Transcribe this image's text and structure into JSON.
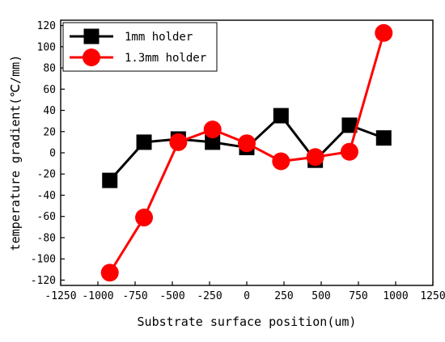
{
  "chart_data": {
    "type": "line",
    "title": "",
    "xlabel": "Substrate surface position(um)",
    "ylabel": "temperature gradient(℃/mm)",
    "xlim": [
      -1250,
      1250
    ],
    "ylim": [
      -125,
      125
    ],
    "xticks": [
      -1250,
      -1000,
      -750,
      -500,
      -250,
      0,
      250,
      500,
      750,
      1000,
      1250
    ],
    "yticks": [
      -120,
      -100,
      -80,
      -60,
      -40,
      -20,
      0,
      20,
      40,
      60,
      80,
      100,
      120
    ],
    "xtick_labels": [
      "-1250",
      "-1000",
      "-750",
      "-500",
      "-250",
      "0",
      "250",
      "500",
      "750",
      "1000",
      "1250"
    ],
    "ytick_labels": [
      "-120",
      "-100",
      "-80",
      "-60",
      "-40",
      "-20",
      "0",
      "20",
      "40",
      "60",
      "80",
      "100",
      "120"
    ],
    "legend_position": "top-left",
    "grid": false,
    "series": [
      {
        "name": "1mm holder",
        "color": "#000000",
        "marker": "square",
        "x": [
          -920,
          -690,
          -460,
          -230,
          0,
          230,
          460,
          690,
          920
        ],
        "y": [
          -26,
          10,
          13,
          10,
          5,
          35,
          -7,
          26,
          14
        ]
      },
      {
        "name": "1.3mm holder",
        "color": "#ff0000",
        "marker": "circle",
        "x": [
          -920,
          -690,
          -460,
          -230,
          0,
          230,
          460,
          690,
          920
        ],
        "y": [
          -113,
          -61,
          10,
          22,
          9,
          -8,
          -4,
          1,
          113
        ]
      }
    ]
  }
}
